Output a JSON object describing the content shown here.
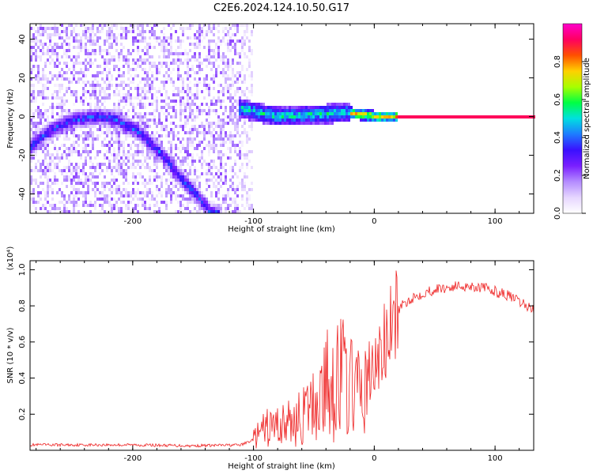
{
  "title": "C2E6.2024.124.10.50.G17",
  "colors": {
    "snr_line": "#ee2222",
    "colormap": [
      "#ffffff",
      "#e6d6ff",
      "#b48cff",
      "#7a1fff",
      "#3a10ff",
      "#1e7bff",
      "#00e0e0",
      "#00ff44",
      "#a8ff00",
      "#ffd000",
      "#ff5000",
      "#ff0060",
      "#ff00cc"
    ]
  },
  "chart_data": [
    {
      "type": "heatmap",
      "title": "C2E6.2024.124.10.50.G17",
      "xlabel": "Height of straight line (km)",
      "ylabel": "Frequency (Hz)",
      "xlim": [
        -285,
        132
      ],
      "ylim": [
        -50,
        48
      ],
      "x_ticks": [
        -200,
        -100,
        0,
        100
      ],
      "y_ticks": [
        -40,
        -20,
        0,
        20,
        40
      ],
      "colorbar": {
        "label": "Normalized spectral amplitude",
        "range": [
          0,
          1
        ],
        "ticks": [
          0.0,
          0.2,
          0.4,
          0.6,
          0.8
        ]
      },
      "features": [
        {
          "description": "Doppler arc",
          "x": [
            -285,
            -270,
            -250,
            -230,
            -215,
            -195,
            -175,
            -160,
            -145,
            -135
          ],
          "y": [
            -16,
            -8,
            -2,
            0,
            -1,
            -8,
            -20,
            -32,
            -42,
            -50
          ]
        },
        {
          "description": "Carrier line",
          "x": [
            -110,
            -80,
            -50,
            -20,
            0,
            30,
            60,
            100,
            132
          ],
          "y": [
            4,
            0,
            1,
            2,
            0,
            0,
            0,
            0,
            0
          ]
        }
      ]
    },
    {
      "type": "line",
      "xlabel": "Height of straight line (km)",
      "ylabel": "SNR (10 * v/v)",
      "y_scale_label": "(x10⁴)",
      "xlim": [
        -285,
        132
      ],
      "ylim": [
        0.0,
        1.05
      ],
      "x_ticks": [
        -200,
        -100,
        0,
        100
      ],
      "y_ticks": [
        0.2,
        0.4,
        0.6,
        0.8,
        1.0
      ],
      "series": [
        {
          "x": [
            -285,
            -250,
            -200,
            -150,
            -110,
            -100,
            -90,
            -80,
            -70,
            -60,
            -50,
            -40,
            -30,
            -20,
            -10,
            0,
            10,
            20,
            30,
            40,
            50,
            60,
            70,
            80,
            90,
            100,
            110,
            120,
            132
          ],
          "y": [
            0.03,
            0.03,
            0.03,
            0.025,
            0.03,
            0.06,
            0.12,
            0.14,
            0.15,
            0.18,
            0.25,
            0.35,
            0.42,
            0.38,
            0.3,
            0.45,
            0.6,
            0.78,
            0.84,
            0.87,
            0.89,
            0.9,
            0.91,
            0.91,
            0.9,
            0.88,
            0.86,
            0.82,
            0.78
          ]
        }
      ]
    }
  ]
}
